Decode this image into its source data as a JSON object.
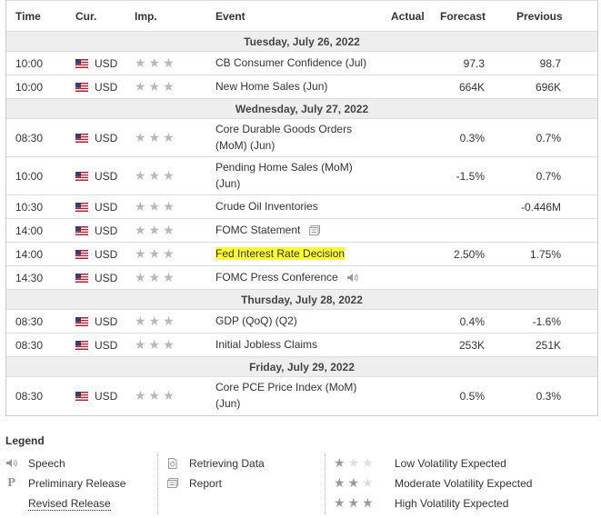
{
  "columns": {
    "time": "Time",
    "currency": "Cur.",
    "importance": "Imp.",
    "event": "Event",
    "actual": "Actual",
    "forecast": "Forecast",
    "previous": "Previous"
  },
  "days": [
    "Tuesday, July 26, 2022",
    "Wednesday, July 27, 2022",
    "Thursday, July 28, 2022",
    "Friday, July 29, 2022"
  ],
  "events": [
    {
      "time": "10:00",
      "currency": "USD",
      "event": "CB Consumer Confidence (Jul)",
      "actual": "",
      "forecast": "97.3",
      "previous": "98.7",
      "stars": 3
    },
    {
      "time": "10:00",
      "currency": "USD",
      "event": "New Home Sales (Jun)",
      "actual": "",
      "forecast": "664K",
      "previous": "696K",
      "stars": 3
    },
    {
      "time": "08:30",
      "currency": "USD",
      "event": "Core Durable Goods Orders (MoM) (Jun)",
      "actual": "",
      "forecast": "0.3%",
      "previous": "0.7%",
      "stars": 3
    },
    {
      "time": "10:00",
      "currency": "USD",
      "event": "Pending Home Sales (MoM) (Jun)",
      "actual": "",
      "forecast": "-1.5%",
      "previous": "0.7%",
      "stars": 3
    },
    {
      "time": "10:30",
      "currency": "USD",
      "event": "Crude Oil Inventories",
      "actual": "",
      "forecast": "",
      "previous": "-0.446M",
      "stars": 3
    },
    {
      "time": "14:00",
      "currency": "USD",
      "event": "FOMC Statement",
      "actual": "",
      "forecast": "",
      "previous": "",
      "stars": 3,
      "icon": "report-icon"
    },
    {
      "time": "14:00",
      "currency": "USD",
      "event": "Fed Interest Rate Decision",
      "actual": "",
      "forecast": "2.50%",
      "previous": "1.75%",
      "stars": 3,
      "highlight_color": "#ffff33"
    },
    {
      "time": "14:30",
      "currency": "USD",
      "event": "FOMC Press Conference",
      "actual": "",
      "forecast": "",
      "previous": "",
      "stars": 3,
      "icon": "speech-icon"
    },
    {
      "time": "08:30",
      "currency": "USD",
      "event": "GDP (QoQ) (Q2)",
      "actual": "",
      "forecast": "0.4%",
      "previous": "-1.6%",
      "stars": 3
    },
    {
      "time": "08:30",
      "currency": "USD",
      "event": "Initial Jobless Claims",
      "actual": "",
      "forecast": "253K",
      "previous": "251K",
      "stars": 3
    },
    {
      "time": "08:30",
      "currency": "USD",
      "event": "Core PCE Price Index (MoM) (Jun)",
      "actual": "",
      "forecast": "0.5%",
      "previous": "0.3%",
      "stars": 3
    }
  ],
  "legend": {
    "title": "Legend",
    "speech": "Speech",
    "preliminary": "Preliminary Release",
    "revised": "Revised Release",
    "retrieving": "Retrieving Data",
    "report": "Report",
    "low": "Low Volatility Expected",
    "moderate": "Moderate Volatility Expected",
    "high": "High Volatility Expected",
    "preliminary_glyph": "P"
  },
  "colors": {
    "day_bg": "#eeeeee",
    "border": "#cccccc",
    "star": "#b8b8b8",
    "highlight": "#ffff33"
  }
}
